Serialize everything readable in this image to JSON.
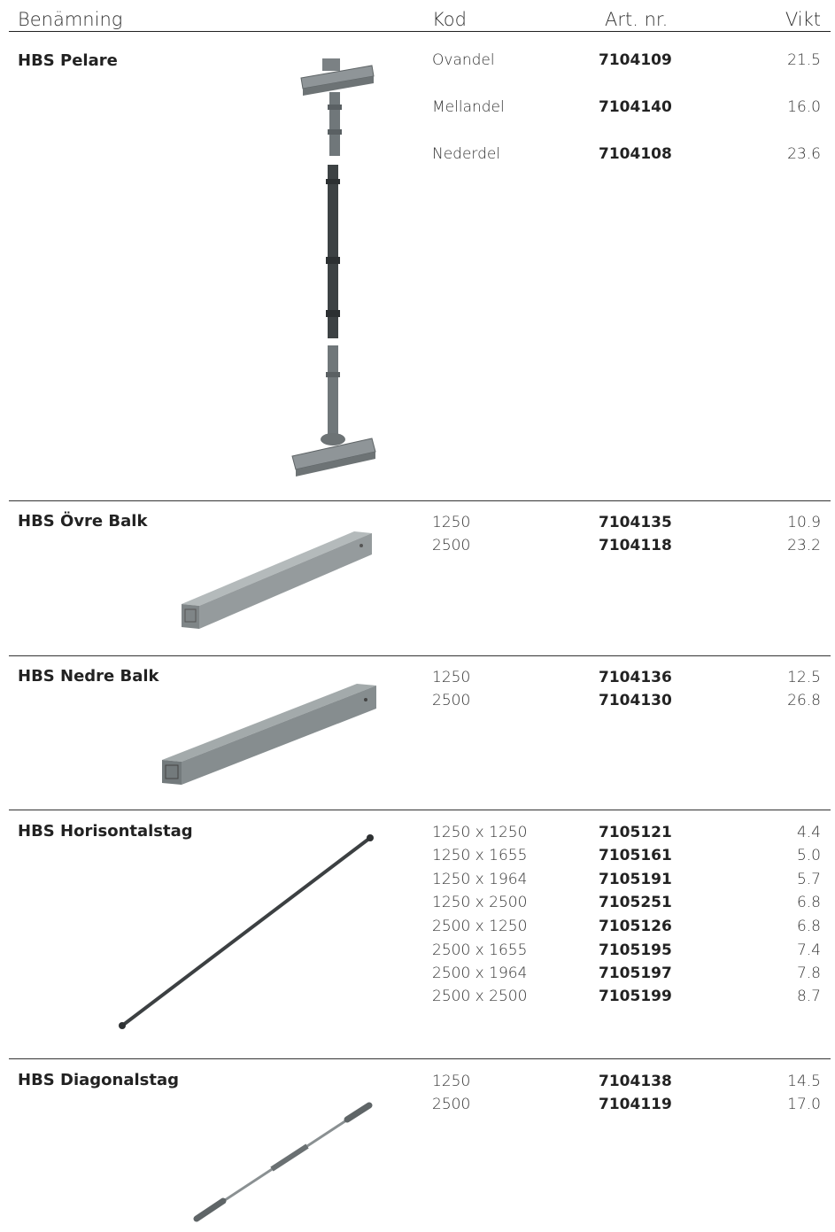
{
  "header": {
    "name": "Benämning",
    "code": "Kod",
    "article": "Art. nr.",
    "weight": "Vikt"
  },
  "products": [
    {
      "name": "HBS Pelare",
      "icon": "column-icon",
      "rows": [
        {
          "kod": "Ovandel",
          "art": "7104109",
          "vikt": "21.5"
        },
        {
          "kod": "Mellandel",
          "art": "7104140",
          "vikt": "16.0"
        },
        {
          "kod": "Nederdel",
          "art": "7104108",
          "vikt": "23.6"
        }
      ]
    },
    {
      "name": "HBS Övre Balk",
      "icon": "upper-beam-icon",
      "rows": [
        {
          "kod": "1250",
          "art": "7104135",
          "vikt": "10.9"
        },
        {
          "kod": "2500",
          "art": "7104118",
          "vikt": "23.2"
        }
      ]
    },
    {
      "name": "HBS Nedre Balk",
      "icon": "lower-beam-icon",
      "rows": [
        {
          "kod": "1250",
          "art": "7104136",
          "vikt": "12.5"
        },
        {
          "kod": "2500",
          "art": "7104130",
          "vikt": "26.8"
        }
      ]
    },
    {
      "name": "HBS Horisontalstag",
      "icon": "horizontal-brace-icon",
      "rows": [
        {
          "kod": "1250 x 1250",
          "art": "7105121",
          "vikt": "4.4"
        },
        {
          "kod": "1250 x 1655",
          "art": "7105161",
          "vikt": "5.0"
        },
        {
          "kod": "1250 x 1964",
          "art": "7105191",
          "vikt": "5.7"
        },
        {
          "kod": "1250 x 2500",
          "art": "7105251",
          "vikt": "6.8"
        },
        {
          "kod": "2500 x 1250",
          "art": "7105126",
          "vikt": "6.8"
        },
        {
          "kod": "2500 x 1655",
          "art": "7105195",
          "vikt": "7.4"
        },
        {
          "kod": "2500 x 1964",
          "art": "7105197",
          "vikt": "7.8"
        },
        {
          "kod": "2500 x 2500",
          "art": "7105199",
          "vikt": "8.7"
        }
      ]
    },
    {
      "name": "HBS Diagonalstag",
      "icon": "diagonal-brace-icon",
      "rows": [
        {
          "kod": "1250",
          "art": "7104138",
          "vikt": "14.5"
        },
        {
          "kod": "2500",
          "art": "7104119",
          "vikt": "17.0"
        }
      ]
    }
  ]
}
